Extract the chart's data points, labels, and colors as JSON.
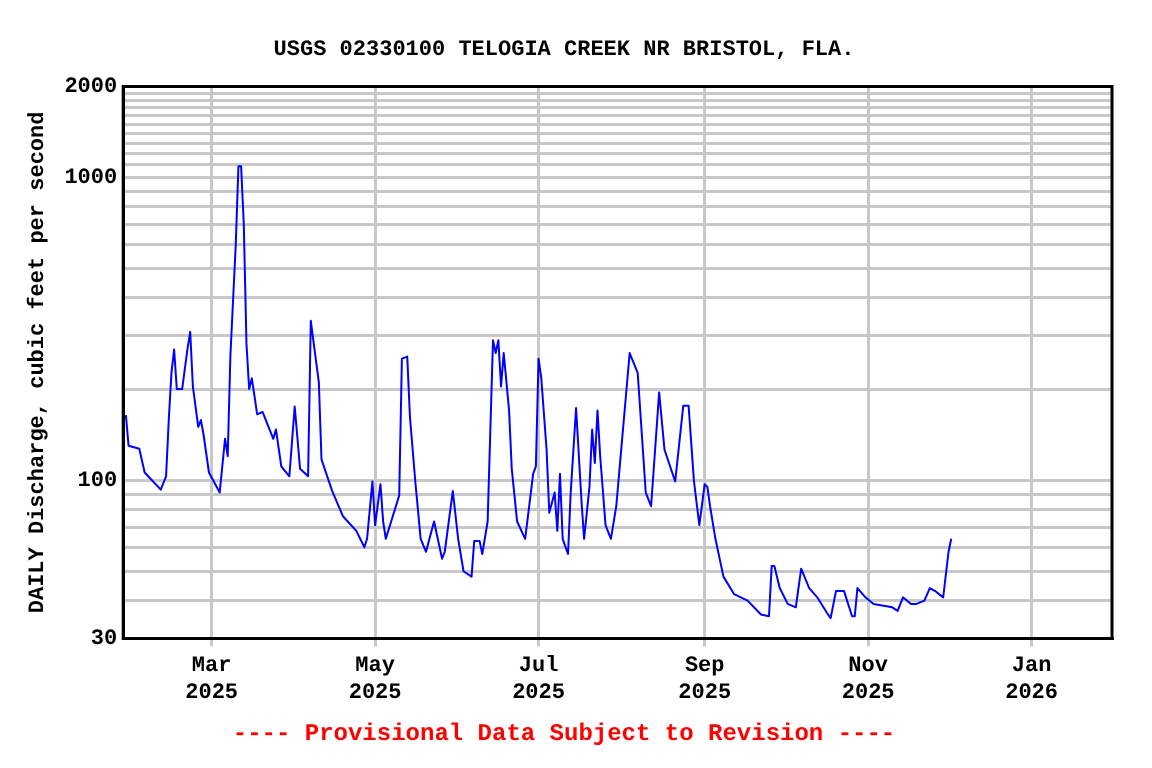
{
  "chart_data": {
    "type": "line",
    "title": "USGS 02330100 TELOGIA CREEK NR BRISTOL, FLA.",
    "ylabel": "DAILY Discharge, cubic feet per second",
    "annotations": [
      "---- Provisional Data Subject to Revision ----"
    ],
    "x": [
      "2025-01-28",
      "2025-01-29",
      "2025-02-02",
      "2025-02-04",
      "2025-02-10",
      "2025-02-12",
      "2025-02-13",
      "2025-02-14",
      "2025-02-15",
      "2025-02-16",
      "2025-02-18",
      "2025-02-20",
      "2025-02-21",
      "2025-02-22",
      "2025-02-24",
      "2025-02-25",
      "2025-02-26",
      "2025-02-28",
      "2025-03-04",
      "2025-03-06",
      "2025-03-07",
      "2025-03-08",
      "2025-03-10",
      "2025-03-11",
      "2025-03-12",
      "2025-03-13",
      "2025-03-14",
      "2025-03-15",
      "2025-03-16",
      "2025-03-18",
      "2025-03-20",
      "2025-03-24",
      "2025-03-25",
      "2025-03-27",
      "2025-03-30",
      "2025-04-01",
      "2025-04-03",
      "2025-04-06",
      "2025-04-07",
      "2025-04-10",
      "2025-04-11",
      "2025-04-15",
      "2025-04-19",
      "2025-04-24",
      "2025-04-27",
      "2025-04-28",
      "2025-04-30",
      "2025-05-01",
      "2025-05-03",
      "2025-05-04",
      "2025-05-05",
      "2025-05-10",
      "2025-05-11",
      "2025-05-13",
      "2025-05-14",
      "2025-05-16",
      "2025-05-18",
      "2025-05-20",
      "2025-05-23",
      "2025-05-26",
      "2025-05-27",
      "2025-05-30",
      "2025-06-01",
      "2025-06-03",
      "2025-06-06",
      "2025-06-07",
      "2025-06-09",
      "2025-06-10",
      "2025-06-12",
      "2025-06-14",
      "2025-06-15",
      "2025-06-16",
      "2025-06-17",
      "2025-06-18",
      "2025-06-20",
      "2025-06-21",
      "2025-06-23",
      "2025-06-26",
      "2025-06-29",
      "2025-06-30",
      "2025-07-01",
      "2025-07-02",
      "2025-07-04",
      "2025-07-05",
      "2025-07-07",
      "2025-07-08",
      "2025-07-09",
      "2025-07-10",
      "2025-07-12",
      "2025-07-13",
      "2025-07-15",
      "2025-07-17",
      "2025-07-18",
      "2025-07-20",
      "2025-07-21",
      "2025-07-22",
      "2025-07-23",
      "2025-07-24",
      "2025-07-26",
      "2025-07-28",
      "2025-07-30",
      "2025-08-04",
      "2025-08-07",
      "2025-08-10",
      "2025-08-12",
      "2025-08-15",
      "2025-08-17",
      "2025-08-21",
      "2025-08-24",
      "2025-08-26",
      "2025-08-28",
      "2025-08-30",
      "2025-09-01",
      "2025-09-02",
      "2025-09-03",
      "2025-09-05",
      "2025-09-08",
      "2025-09-12",
      "2025-09-17",
      "2025-09-22",
      "2025-09-25",
      "2025-09-26",
      "2025-09-27",
      "2025-09-29",
      "2025-10-02",
      "2025-10-05",
      "2025-10-07",
      "2025-10-10",
      "2025-10-13",
      "2025-10-17",
      "2025-10-18",
      "2025-10-20",
      "2025-10-23",
      "2025-10-26",
      "2025-10-27",
      "2025-10-28",
      "2025-10-31",
      "2025-11-03",
      "2025-11-10",
      "2025-11-12",
      "2025-11-14",
      "2025-11-17",
      "2025-11-19",
      "2025-11-22",
      "2025-11-24",
      "2025-11-26",
      "2025-11-29",
      "2025-12-01",
      "2025-12-02"
    ],
    "series": [
      {
        "color": "#0000ff",
        "values": [
          164,
          130,
          127,
          106,
          93,
          103,
          158,
          226,
          270,
          200,
          200,
          272,
          309,
          204,
          150,
          158,
          141,
          106,
          91,
          137,
          120,
          258,
          600,
          1090,
          1090,
          700,
          282,
          200,
          217,
          165,
          168,
          137,
          147,
          111,
          103,
          175,
          109,
          103,
          336,
          211,
          117,
          92,
          76,
          68,
          60,
          64,
          99,
          71,
          97,
          73,
          64,
          89,
          252,
          256,
          162,
          99,
          64,
          58,
          73,
          55,
          58,
          92,
          64,
          50,
          48,
          63,
          63,
          57,
          73,
          290,
          263,
          290,
          204,
          263,
          170,
          109,
          73,
          64,
          105,
          111,
          252,
          218,
          126,
          78,
          91,
          68,
          105,
          64,
          57,
          91,
          173,
          86,
          64,
          95,
          147,
          114,
          170,
          120,
          71,
          64,
          82,
          263,
          226,
          91,
          82,
          195,
          126,
          99,
          176,
          176,
          99,
          71,
          97,
          95,
          82,
          64,
          48,
          42,
          40,
          36,
          35.5,
          52,
          52,
          44,
          39,
          38,
          51,
          44,
          41,
          36,
          35,
          43,
          43,
          35.5,
          35.5,
          44,
          41,
          39,
          38,
          37,
          41,
          39,
          39,
          40,
          44,
          43,
          41,
          58,
          64
        ]
      }
    ],
    "xlim": [
      "2025-01-27",
      "2026-01-31"
    ],
    "xticks": [
      {
        "value": "2025-03-01",
        "label": "Mar 2025"
      },
      {
        "value": "2025-05-01",
        "label": "May 2025"
      },
      {
        "value": "2025-07-01",
        "label": "Jul 2025"
      },
      {
        "value": "2025-09-01",
        "label": "Sep 2025"
      },
      {
        "value": "2025-11-01",
        "label": "Nov 2025"
      },
      {
        "value": "2026-01-01",
        "label": "Jan 2026"
      }
    ],
    "ylim": [
      30,
      2000
    ],
    "yticks": [
      30,
      {
        "value": 40,
        "label": null
      },
      {
        "value": 50,
        "label": null
      },
      {
        "value": 60,
        "label": null
      },
      {
        "value": 70,
        "label": null
      },
      {
        "value": 80,
        "label": null
      },
      {
        "value": 90,
        "label": null
      },
      100,
      {
        "value": 200,
        "label": null
      },
      {
        "value": 300,
        "label": null
      },
      {
        "value": 400,
        "label": null
      },
      {
        "value": 500,
        "label": null
      },
      {
        "value": 600,
        "label": null
      },
      {
        "value": 700,
        "label": null
      },
      {
        "value": 800,
        "label": null
      },
      {
        "value": 900,
        "label": null
      },
      1000,
      {
        "value": 1100,
        "label": null
      },
      {
        "value": 1200,
        "label": null
      },
      {
        "value": 1300,
        "label": null
      },
      {
        "value": 1400,
        "label": null
      },
      {
        "value": 1500,
        "label": null
      },
      {
        "value": 1600,
        "label": null
      },
      {
        "value": 1700,
        "label": null
      },
      {
        "value": 1800,
        "label": null
      },
      {
        "value": 1900,
        "label": null
      },
      2000
    ],
    "log": true,
    "grid": true,
    "legend": false,
    "marker": "none",
    "line_style": "solid"
  }
}
